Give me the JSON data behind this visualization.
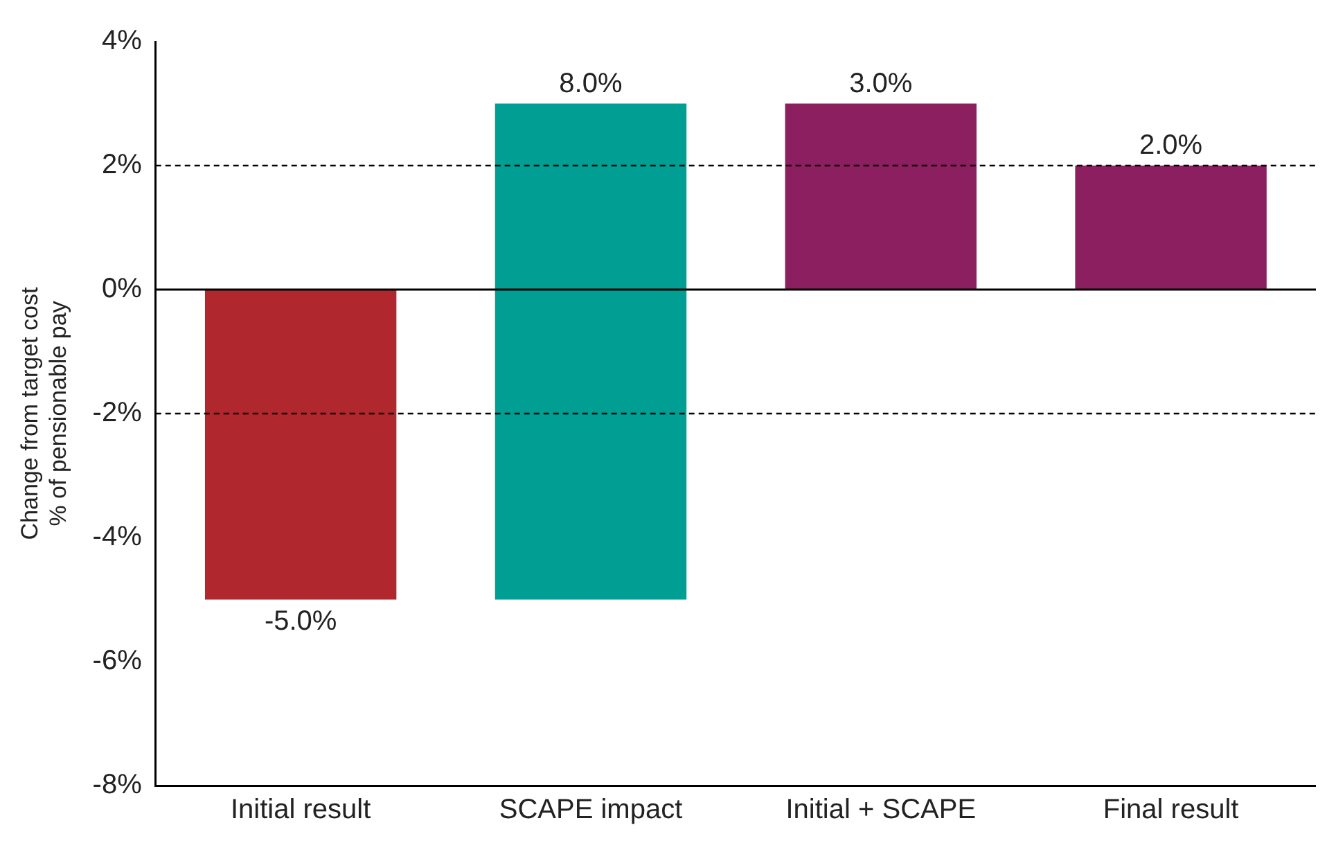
{
  "chart_data": {
    "type": "bar",
    "ylabel": "Change from target cost\n% of pensionable pay",
    "categories": [
      "Initial result",
      "SCAPE impact",
      "Initial + SCAPE",
      "Final result"
    ],
    "values": [
      -5,
      8,
      3,
      2
    ],
    "base": [
      0,
      -5,
      0,
      0
    ],
    "colors": [
      "#b0282d",
      "#009e93",
      "#8c1f5f",
      "#8c1f5f"
    ],
    "value_labels": [
      "-5.0%",
      "8.0%",
      "3.0%",
      "2.0%"
    ],
    "ylim": [
      -8,
      4
    ],
    "yticks": [
      {
        "value": -8,
        "label": "-8%"
      },
      {
        "value": -6,
        "label": "-6%"
      },
      {
        "value": -4,
        "label": "-4%"
      },
      {
        "value": -2,
        "label": "-2%"
      },
      {
        "value": 0,
        "label": "0%"
      },
      {
        "value": 2,
        "label": "2%"
      },
      {
        "value": 4,
        "label": "4%"
      }
    ],
    "ref_lines": [
      {
        "axis": "y",
        "value": 2,
        "line_style": "dashed"
      },
      {
        "axis": "y",
        "value": -2,
        "line_style": "dashed"
      },
      {
        "axis": "y",
        "value": 0,
        "line_style": "solid"
      }
    ],
    "grid": false,
    "legend": false
  }
}
